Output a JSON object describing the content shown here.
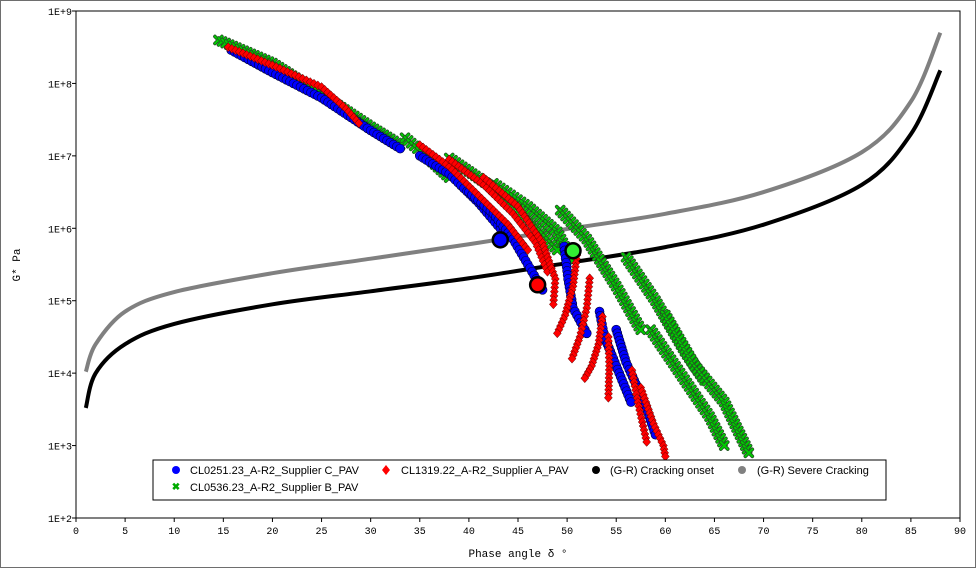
{
  "chart_data": {
    "type": "scatter",
    "title": "",
    "xlabel": "Phase angle δ °",
    "ylabel": "G* Pa",
    "xlim": [
      0,
      90
    ],
    "ylim_log10": [
      2,
      9
    ],
    "yscale": "log",
    "x_ticks": [
      "0",
      "5",
      "10",
      "15",
      "20",
      "25",
      "30",
      "35",
      "40",
      "45",
      "50",
      "55",
      "60",
      "65",
      "70",
      "75",
      "80",
      "85",
      "90"
    ],
    "y_ticks": [
      "1E+2",
      "1E+3",
      "1E+4",
      "1E+5",
      "1E+6",
      "1E+7",
      "1E+8",
      "1E+9"
    ],
    "grid": false,
    "legend_placement": "bottom-center",
    "series": [
      {
        "name": "CL0251.23_A-R2_Supplier C_PAV",
        "marker": "circle",
        "color": "#0000ff",
        "segments_log10G": [
          [
            [
              15.8,
              8.46
            ],
            [
              20,
              8.15
            ],
            [
              25,
              7.8
            ],
            [
              30,
              7.35
            ],
            [
              33,
              7.1
            ]
          ],
          [
            [
              35,
              7.0
            ],
            [
              38,
              6.75
            ],
            [
              41,
              6.35
            ],
            [
              43.5,
              5.95
            ]
          ],
          [
            [
              40,
              6.5
            ],
            [
              42.5,
              6.2
            ],
            [
              44.5,
              5.85
            ],
            [
              46,
              5.5
            ],
            [
              47.5,
              5.15
            ]
          ],
          [
            [
              49.7,
              5.75
            ],
            [
              50.1,
              5.3
            ],
            [
              50.6,
              4.9
            ],
            [
              52,
              4.55
            ]
          ],
          [
            [
              53.3,
              4.85
            ],
            [
              53.8,
              4.5
            ],
            [
              55,
              4.1
            ],
            [
              56.5,
              3.6
            ]
          ],
          [
            [
              55,
              4.6
            ],
            [
              56,
              4.15
            ],
            [
              58,
              3.55
            ],
            [
              59,
              3.15
            ]
          ]
        ]
      },
      {
        "name": "CL1319.22_A-R2_Supplier A_PAV",
        "marker": "diamond",
        "color": "#ff0000",
        "segments_log10G": [
          [
            [
              15.5,
              8.5
            ],
            [
              20,
              8.25
            ],
            [
              25,
              7.95
            ],
            [
              27.5,
              7.65
            ],
            [
              28.8,
              7.45
            ]
          ],
          [
            [
              35,
              7.15
            ],
            [
              38,
              6.85
            ],
            [
              41,
              6.45
            ],
            [
              44,
              6.05
            ],
            [
              46,
              5.7
            ]
          ],
          [
            [
              38,
              6.95
            ],
            [
              41.5,
              6.6
            ],
            [
              44.5,
              6.2
            ],
            [
              46.8,
              5.8
            ],
            [
              48,
              5.4
            ]
          ],
          [
            [
              41.5,
              6.7
            ],
            [
              45,
              6.3
            ],
            [
              47.5,
              5.8
            ],
            [
              48.8,
              5.3
            ],
            [
              48.6,
              4.95
            ]
          ],
          [
            [
              51,
              5.63
            ],
            [
              50.6,
              5.2
            ],
            [
              49.8,
              4.8
            ],
            [
              49,
              4.55
            ]
          ],
          [
            [
              52.3,
              5.31
            ],
            [
              52,
              4.9
            ],
            [
              51.3,
              4.5
            ],
            [
              50.5,
              4.2
            ]
          ],
          [
            [
              53.6,
              4.78
            ],
            [
              53.2,
              4.4
            ],
            [
              52.5,
              4.1
            ],
            [
              51.8,
              3.93
            ]
          ],
          [
            [
              54.2,
              4.5
            ],
            [
              54.3,
              4.1
            ],
            [
              54.2,
              3.66
            ]
          ],
          [
            [
              56.6,
              4.04
            ],
            [
              57.2,
              3.6
            ],
            [
              58.1,
              3.05
            ]
          ],
          [
            [
              57.5,
              3.8
            ],
            [
              58.8,
              3.3
            ],
            [
              59.8,
              3.0
            ],
            [
              60,
              2.85
            ]
          ]
        ]
      },
      {
        "name": "CL0536.23_A-R2_Supplier B_PAV",
        "marker": "x",
        "color": "#00cc00",
        "segments_log10G": [
          [
            [
              14.5,
              8.6
            ],
            [
              20,
              8.28
            ],
            [
              25,
              7.85
            ],
            [
              30,
              7.4
            ],
            [
              33,
              7.15
            ]
          ],
          [
            [
              33.5,
              7.25
            ],
            [
              36,
              6.95
            ],
            [
              38,
              6.7
            ]
          ],
          [
            [
              38,
              6.97
            ],
            [
              42,
              6.6
            ],
            [
              46,
              6.15
            ],
            [
              49,
              5.7
            ]
          ],
          [
            [
              42.5,
              6.62
            ],
            [
              46,
              6.3
            ],
            [
              49,
              5.95
            ],
            [
              50.5,
              5.55
            ]
          ],
          [
            [
              49.3,
              6.25
            ],
            [
              52,
              5.85
            ],
            [
              55,
              5.2
            ],
            [
              57.5,
              4.6
            ]
          ],
          [
            [
              56,
              5.6
            ],
            [
              59,
              5.0
            ],
            [
              62,
              4.3
            ],
            [
              64,
              3.9
            ]
          ],
          [
            [
              60,
              4.8
            ],
            [
              63,
              4.1
            ],
            [
              66,
              3.6
            ],
            [
              68.5,
              2.9
            ]
          ],
          [
            [
              58.5,
              4.6
            ],
            [
              61.5,
              4.0
            ],
            [
              64.5,
              3.4
            ],
            [
              66,
              3.0
            ]
          ]
        ]
      },
      {
        "name": "(G-R) Cracking onset",
        "marker": "line",
        "color": "#000000",
        "points_log10G": [
          [
            1,
            3.52
          ],
          [
            2,
            4.0
          ],
          [
            5,
            4.4
          ],
          [
            10,
            4.68
          ],
          [
            20,
            4.95
          ],
          [
            30,
            5.13
          ],
          [
            40,
            5.31
          ],
          [
            50,
            5.52
          ],
          [
            60,
            5.74
          ],
          [
            70,
            6.05
          ],
          [
            80,
            6.6
          ],
          [
            85,
            7.3
          ],
          [
            88,
            8.18
          ]
        ]
      },
      {
        "name": "(G-R) Severe Cracking",
        "marker": "line",
        "color": "#808080",
        "points_log10G": [
          [
            1,
            4.02
          ],
          [
            2,
            4.4
          ],
          [
            5,
            4.85
          ],
          [
            10,
            5.12
          ],
          [
            20,
            5.38
          ],
          [
            30,
            5.58
          ],
          [
            40,
            5.78
          ],
          [
            50,
            5.99
          ],
          [
            60,
            6.2
          ],
          [
            70,
            6.5
          ],
          [
            80,
            7.05
          ],
          [
            85,
            7.75
          ],
          [
            88,
            8.7
          ]
        ]
      }
    ],
    "highlight_points_log10G": [
      {
        "series": "CL0251.23_A-R2_Supplier C_PAV",
        "x": 43.2,
        "y": 5.84,
        "color": "#0000ff"
      },
      {
        "series": "CL1319.22_A-R2_Supplier A_PAV",
        "x": 47.0,
        "y": 5.22,
        "color": "#ff0000"
      },
      {
        "series": "CL0536.23_A-R2_Supplier B_PAV",
        "x": 50.6,
        "y": 5.69,
        "color": "#33ee33"
      }
    ]
  }
}
